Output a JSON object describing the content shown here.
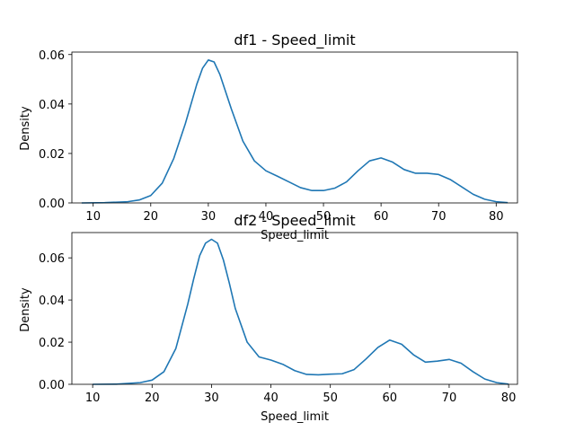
{
  "colors": {
    "line": "#1f77b4"
  },
  "chart_data": [
    {
      "type": "line",
      "title": "df1 - Speed_limit",
      "xlabel": "Speed_limit",
      "ylabel": "Density",
      "xlim": [
        6.3,
        83.7
      ],
      "ylim": [
        0,
        0.061
      ],
      "xticks": [
        10,
        20,
        30,
        40,
        50,
        60,
        70,
        80
      ],
      "yticks": [
        0.0,
        0.02,
        0.04,
        0.06
      ],
      "ytick_labels": [
        "0.00",
        "0.02",
        "0.04",
        "0.06"
      ],
      "grid": false,
      "series": [
        {
          "x": [
            8,
            12,
            16,
            18,
            20,
            22,
            24,
            26,
            28,
            29,
            30,
            31,
            32,
            34,
            36,
            38,
            40,
            42,
            44,
            46,
            48,
            50,
            52,
            54,
            56,
            58,
            60,
            62,
            64,
            66,
            68,
            70,
            72,
            74,
            76,
            78,
            80,
            82
          ],
          "y": [
            0.0,
            0.0001,
            0.0005,
            0.0012,
            0.003,
            0.008,
            0.018,
            0.032,
            0.048,
            0.0545,
            0.0578,
            0.057,
            0.052,
            0.038,
            0.025,
            0.017,
            0.013,
            0.0108,
            0.0085,
            0.0062,
            0.005,
            0.005,
            0.006,
            0.0085,
            0.013,
            0.017,
            0.0182,
            0.0165,
            0.0135,
            0.012,
            0.012,
            0.0115,
            0.0095,
            0.0065,
            0.0035,
            0.0015,
            0.0005,
            0.0001
          ]
        }
      ]
    },
    {
      "type": "line",
      "title": "df2 - Speed_limit",
      "xlabel": "Speed_limit",
      "ylabel": "Density",
      "xlim": [
        6.5,
        81.5
      ],
      "ylim": [
        0,
        0.072
      ],
      "xticks": [
        10,
        20,
        30,
        40,
        50,
        60,
        70,
        80
      ],
      "yticks": [
        0.0,
        0.02,
        0.04,
        0.06
      ],
      "ytick_labels": [
        "0.00",
        "0.02",
        "0.04",
        "0.06"
      ],
      "grid": false,
      "series": [
        {
          "x": [
            10,
            14,
            18,
            20,
            22,
            24,
            26,
            27,
            28,
            29,
            30,
            31,
            32,
            33,
            34,
            36,
            38,
            40,
            42,
            44,
            46,
            48,
            50,
            52,
            54,
            56,
            58,
            60,
            62,
            64,
            66,
            68,
            70,
            72,
            74,
            76,
            78,
            80
          ],
          "y": [
            0.0,
            0.0001,
            0.0008,
            0.002,
            0.006,
            0.017,
            0.038,
            0.05,
            0.061,
            0.067,
            0.0688,
            0.067,
            0.059,
            0.048,
            0.036,
            0.02,
            0.013,
            0.0115,
            0.0095,
            0.0065,
            0.0047,
            0.0045,
            0.0048,
            0.005,
            0.007,
            0.012,
            0.0175,
            0.021,
            0.019,
            0.014,
            0.0105,
            0.011,
            0.0118,
            0.01,
            0.006,
            0.0025,
            0.0008,
            0.0001
          ]
        }
      ]
    }
  ]
}
